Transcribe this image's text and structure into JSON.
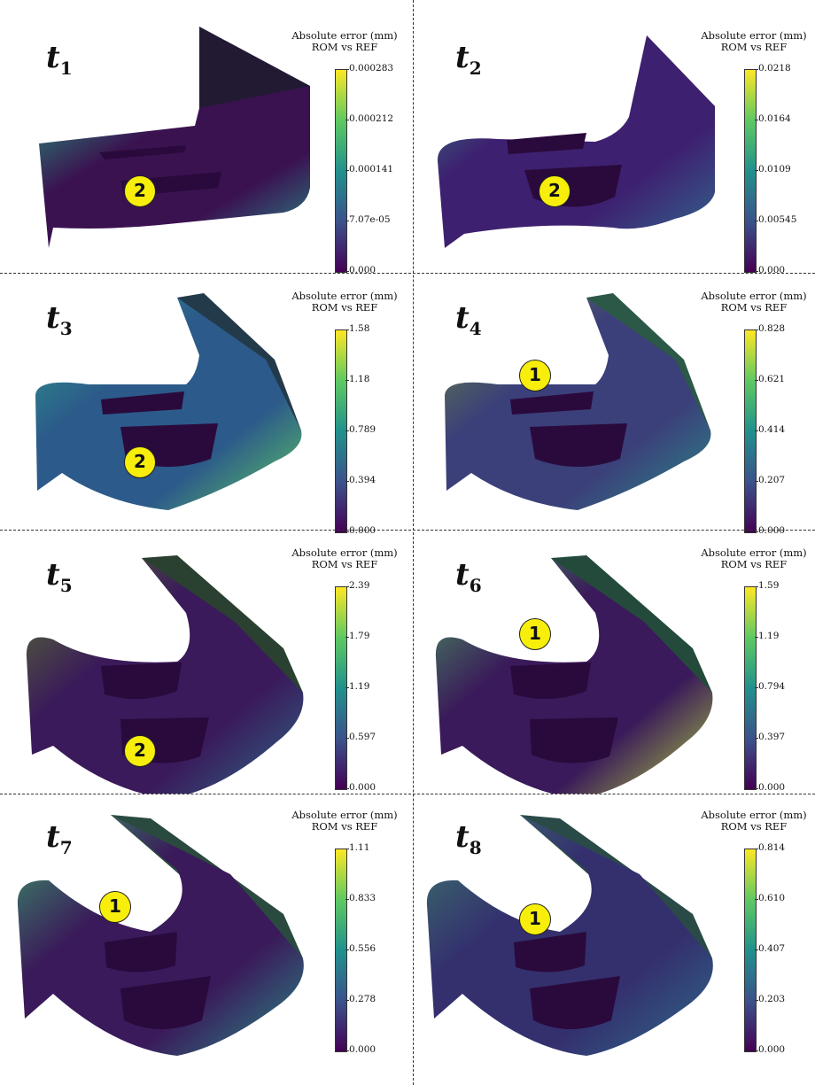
{
  "panels": [
    {
      "id": "t1",
      "t": "t",
      "sub": "1",
      "title1": "Absolute error (mm)",
      "title2": "ROM vs REF",
      "ticks": [
        "0.000283",
        "0.000212",
        "0.000141",
        "7.07e-05",
        "0.000"
      ],
      "marker": "2",
      "shape": 0,
      "colors": {
        "sheet": "#3a1250",
        "wall": "#221a33",
        "highlight": "#2a8a8a",
        "accent": "#26a080"
      }
    },
    {
      "id": "t2",
      "t": "t",
      "sub": "2",
      "title1": "Absolute error (mm)",
      "title2": "ROM vs REF",
      "ticks": [
        "0.0218",
        "0.0164",
        "0.0109",
        "0.00545",
        "0.000"
      ],
      "marker": "2",
      "shape": 1,
      "colors": {
        "sheet": "#3e2070",
        "wall": "#20202e",
        "highlight": "#31688e",
        "accent": "#2a9a86"
      }
    },
    {
      "id": "t3",
      "t": "t",
      "sub": "3",
      "title1": "Absolute error (mm)",
      "title2": "ROM vs REF",
      "ticks": [
        "1.58",
        "1.18",
        "0.789",
        "0.394",
        "0.000"
      ],
      "marker": "2",
      "shape": 2,
      "colors": {
        "sheet": "#2c5a8a",
        "wall": "#233a4a",
        "highlight": "#5ec962",
        "accent": "#2ea08a"
      }
    },
    {
      "id": "t4",
      "t": "t",
      "sub": "4",
      "title1": "Absolute error (mm)",
      "title2": "ROM vs REF",
      "ticks": [
        "0.828",
        "0.621",
        "0.414",
        "0.207",
        "0.000"
      ],
      "marker": "1",
      "shape": 2,
      "colors": {
        "sheet": "#3b3f7a",
        "wall": "#2c5848",
        "highlight": "#2a8a86",
        "accent": "#6a8a3a"
      }
    },
    {
      "id": "t5",
      "t": "t",
      "sub": "5",
      "title1": "Absolute error (mm)",
      "title2": "ROM vs REF",
      "ticks": [
        "2.39",
        "1.79",
        "1.19",
        "0.597",
        "0.000"
      ],
      "marker": "2",
      "shape": 3,
      "colors": {
        "sheet": "#3a1a5a",
        "wall": "#2a4030",
        "highlight": "#2d6a8a",
        "accent": "#5a7a2a"
      }
    },
    {
      "id": "t6",
      "t": "t",
      "sub": "6",
      "title1": "Absolute error (mm)",
      "title2": "ROM vs REF",
      "ticks": [
        "1.59",
        "1.19",
        "0.794",
        "0.397",
        "0.000"
      ],
      "marker": "1",
      "shape": 3,
      "colors": {
        "sheet": "#3a1a5a",
        "wall": "#234a3a",
        "highlight": "#b0d040",
        "accent": "#4aa060"
      }
    },
    {
      "id": "t7",
      "t": "t",
      "sub": "7",
      "title1": "Absolute error (mm)",
      "title2": "ROM vs REF",
      "ticks": [
        "1.11",
        "0.833",
        "0.556",
        "0.278",
        "0.000"
      ],
      "marker": "1",
      "shape": 4,
      "colors": {
        "sheet": "#3a1a5a",
        "wall": "#2a4a40",
        "highlight": "#2a8a86",
        "accent": "#3aa06a"
      }
    },
    {
      "id": "t8",
      "t": "t",
      "sub": "8",
      "title1": "Absolute error (mm)",
      "title2": "ROM vs REF",
      "ticks": [
        "0.814",
        "0.610",
        "0.407",
        "0.203",
        "0.000"
      ],
      "marker": "1",
      "shape": 4,
      "colors": {
        "sheet": "#34306e",
        "wall": "#2a4a48",
        "highlight": "#2e6a8a",
        "accent": "#3a7a6a"
      }
    }
  ]
}
